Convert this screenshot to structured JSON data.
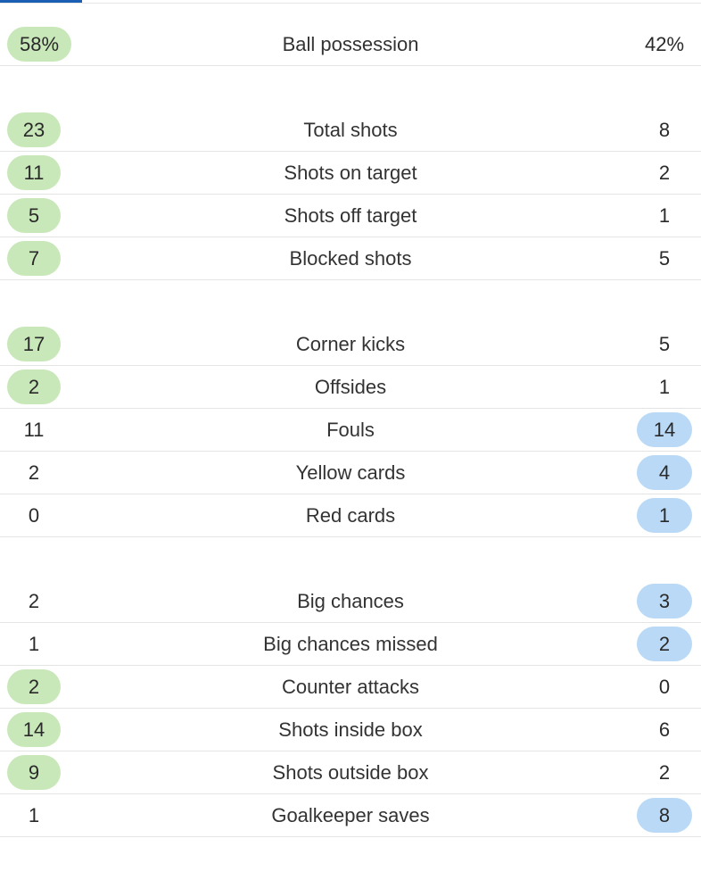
{
  "groups": [
    {
      "rows": [
        {
          "label": "Ball possession",
          "home": "58%",
          "away": "42%",
          "winner": "home"
        }
      ]
    },
    {
      "rows": [
        {
          "label": "Total shots",
          "home": "23",
          "away": "8",
          "winner": "home"
        },
        {
          "label": "Shots on target",
          "home": "11",
          "away": "2",
          "winner": "home"
        },
        {
          "label": "Shots off target",
          "home": "5",
          "away": "1",
          "winner": "home"
        },
        {
          "label": "Blocked shots",
          "home": "7",
          "away": "5",
          "winner": "home"
        }
      ]
    },
    {
      "rows": [
        {
          "label": "Corner kicks",
          "home": "17",
          "away": "5",
          "winner": "home"
        },
        {
          "label": "Offsides",
          "home": "2",
          "away": "1",
          "winner": "home"
        },
        {
          "label": "Fouls",
          "home": "11",
          "away": "14",
          "winner": "away"
        },
        {
          "label": "Yellow cards",
          "home": "2",
          "away": "4",
          "winner": "away"
        },
        {
          "label": "Red cards",
          "home": "0",
          "away": "1",
          "winner": "away"
        }
      ]
    },
    {
      "rows": [
        {
          "label": "Big chances",
          "home": "2",
          "away": "3",
          "winner": "away"
        },
        {
          "label": "Big chances missed",
          "home": "1",
          "away": "2",
          "winner": "away"
        },
        {
          "label": "Counter attacks",
          "home": "2",
          "away": "0",
          "winner": "home"
        },
        {
          "label": "Shots inside box",
          "home": "14",
          "away": "6",
          "winner": "home"
        },
        {
          "label": "Shots outside box",
          "home": "9",
          "away": "2",
          "winner": "home"
        },
        {
          "label": "Goalkeeper saves",
          "home": "1",
          "away": "8",
          "winner": "away"
        }
      ]
    }
  ],
  "colors": {
    "home_highlight": "#c9e8b9",
    "away_highlight": "#b9d9f6",
    "tab_indicator": "#1a5fb4"
  }
}
